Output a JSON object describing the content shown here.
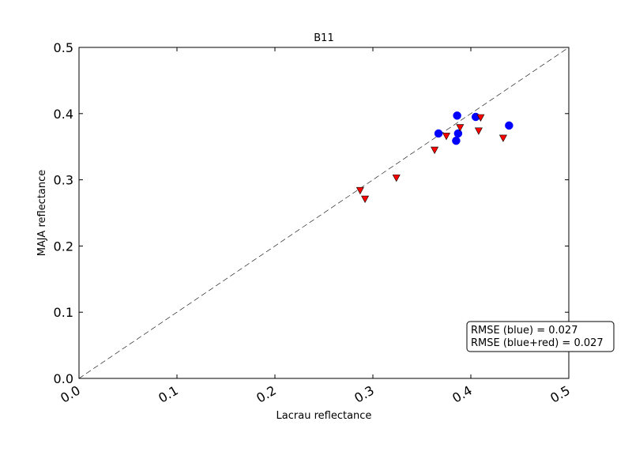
{
  "chart_data": {
    "type": "scatter",
    "title": "B11",
    "xlabel": "Lacrau reflectance",
    "ylabel": "MAJA reflectance",
    "xlim": [
      0.0,
      0.5
    ],
    "ylim": [
      0.0,
      0.5
    ],
    "xticks": [
      "0.0",
      "0.1",
      "0.2",
      "0.3",
      "0.4",
      "0.5"
    ],
    "yticks": [
      "0.0",
      "0.1",
      "0.2",
      "0.3",
      "0.4",
      "0.5"
    ],
    "grid": false,
    "reference_line": "y = x (dashed)",
    "series": [
      {
        "color": "#0000ff",
        "marker": "circle",
        "points": [
          {
            "x": 0.367,
            "y": 0.37
          },
          {
            "x": 0.386,
            "y": 0.397
          },
          {
            "x": 0.385,
            "y": 0.359
          },
          {
            "x": 0.387,
            "y": 0.37
          },
          {
            "x": 0.405,
            "y": 0.395
          },
          {
            "x": 0.439,
            "y": 0.382
          }
        ]
      },
      {
        "color": "#ff0000",
        "marker": "triangle-down",
        "points": [
          {
            "x": 0.287,
            "y": 0.284
          },
          {
            "x": 0.292,
            "y": 0.271
          },
          {
            "x": 0.324,
            "y": 0.303
          },
          {
            "x": 0.363,
            "y": 0.345
          },
          {
            "x": 0.375,
            "y": 0.366
          },
          {
            "x": 0.389,
            "y": 0.379
          },
          {
            "x": 0.408,
            "y": 0.374
          },
          {
            "x": 0.41,
            "y": 0.394
          },
          {
            "x": 0.433,
            "y": 0.363
          }
        ]
      }
    ],
    "annotation": {
      "lines": [
        "RMSE (blue) = 0.027",
        "RMSE (blue+red) = 0.027"
      ],
      "placement": "bottom-right"
    }
  }
}
